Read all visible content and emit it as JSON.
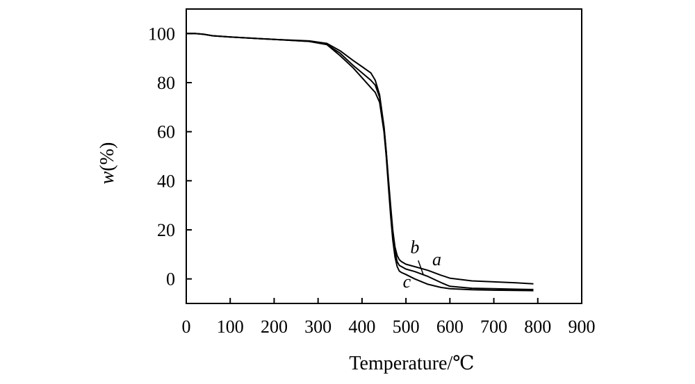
{
  "chart_data": {
    "type": "line",
    "xlabel": "Temperature/℃",
    "ylabel_var": "w",
    "ylabel_unit": "(%)",
    "xlim": [
      0,
      900
    ],
    "ylim": [
      -10,
      110
    ],
    "x_ticks": [
      0,
      100,
      200,
      300,
      400,
      500,
      600,
      700,
      800,
      900
    ],
    "y_ticks": [
      0,
      20,
      40,
      60,
      80,
      100
    ],
    "x_tick_labels": [
      "0",
      "100",
      "200",
      "300",
      "400",
      "500",
      "600",
      "700",
      "800",
      "900"
    ],
    "y_tick_labels": [
      "0",
      "20",
      "40",
      "60",
      "80",
      "100"
    ],
    "grid": false,
    "legend": "none",
    "series": [
      {
        "name": "a",
        "label_point": [
          560,
          5.5
        ],
        "x": [
          0,
          20,
          40,
          60,
          100,
          200,
          280,
          320,
          350,
          380,
          400,
          420,
          430,
          440,
          450,
          455,
          460,
          465,
          470,
          475,
          480,
          485,
          490,
          500,
          520,
          550,
          580,
          600,
          650,
          700,
          750,
          790
        ],
        "values": [
          100,
          100,
          99.7,
          99.1,
          98.6,
          97.6,
          97,
          96,
          93,
          89,
          86.5,
          84,
          81,
          75,
          62,
          52,
          41,
          30,
          20,
          13,
          9.5,
          7.8,
          7,
          6,
          5,
          3.5,
          1.5,
          0.3,
          -0.8,
          -1.2,
          -1.6,
          -2
        ]
      },
      {
        "name": "b",
        "label_point": [
          510,
          10.5
        ],
        "x": [
          0,
          20,
          40,
          60,
          100,
          200,
          280,
          320,
          350,
          380,
          400,
          420,
          430,
          440,
          450,
          455,
          460,
          465,
          470,
          475,
          480,
          485,
          490,
          500,
          520,
          550,
          580,
          600,
          650,
          700,
          750,
          790
        ],
        "values": [
          100,
          100,
          99.7,
          99.1,
          98.6,
          97.6,
          96.8,
          95.5,
          92,
          87,
          84,
          81,
          79,
          74,
          62,
          52,
          40,
          28,
          18,
          11,
          7,
          5.5,
          5,
          4,
          3,
          1,
          -1.5,
          -3,
          -3.8,
          -4,
          -4.2,
          -4.3
        ]
      },
      {
        "name": "c",
        "label_point": [
          493,
          -3.5
        ],
        "x": [
          0,
          20,
          40,
          60,
          100,
          200,
          280,
          320,
          350,
          380,
          400,
          420,
          430,
          440,
          450,
          455,
          460,
          465,
          470,
          475,
          480,
          485,
          490,
          500,
          520,
          550,
          580,
          600,
          650,
          700,
          750,
          790
        ],
        "values": [
          100,
          100,
          99.7,
          99.1,
          98.6,
          97.6,
          96.8,
          95.5,
          91,
          86,
          82,
          78,
          76,
          72,
          60,
          50,
          38,
          26,
          16,
          9,
          5,
          3.2,
          2.6,
          1.8,
          0,
          -2.2,
          -3.5,
          -4,
          -4.4,
          -4.6,
          -4.7,
          -4.8
        ]
      }
    ]
  }
}
